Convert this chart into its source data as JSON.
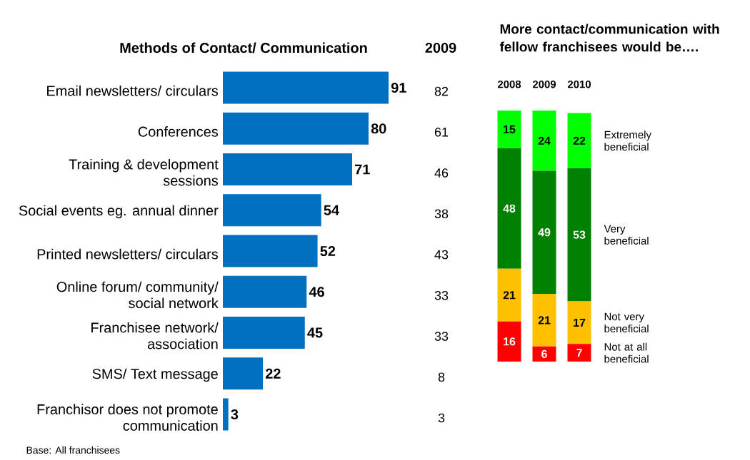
{
  "chart_data": [
    {
      "type": "bar",
      "orientation": "horizontal",
      "title": "Methods of Contact/ Communication",
      "categories": [
        "Email newsletters/ circulars",
        "Conferences",
        "Training & development sessions",
        "Social events eg. annual dinner",
        "Printed newsletters/ circulars",
        "Online forum/ community/ social network",
        "Franchisee network/ association",
        "SMS/ Text message",
        "Franchisor does not promote communication"
      ],
      "values": [
        91,
        80,
        71,
        54,
        52,
        46,
        45,
        22,
        3
      ],
      "color": "#0070c0",
      "data_labels": true,
      "tick_labels": "y",
      "annotations": [
        "2009",
        "82",
        "61",
        "46",
        "38",
        "43",
        "33",
        "33",
        "8",
        "3",
        "Base: All franchisees"
      ]
    },
    {
      "type": "bar",
      "stacked": true,
      "title": "More contact/communication with fellow franchisees would be….",
      "categories": [
        "2008",
        "2009",
        "2010"
      ],
      "series": [
        {
          "name": "Not at all beneficial",
          "color": "#ff0000",
          "values": [
            16,
            6,
            7
          ]
        },
        {
          "name": "Not very beneficial",
          "color": "#ffc000",
          "values": [
            21,
            21,
            17
          ]
        },
        {
          "name": "Very beneficial",
          "color": "#008000",
          "values": [
            48,
            49,
            53
          ]
        },
        {
          "name": "Extremely beneficial",
          "color": "#00ff00",
          "values": [
            15,
            24,
            22
          ]
        }
      ],
      "data_labels": true,
      "legend": "right",
      "tick_labels": "x"
    }
  ]
}
